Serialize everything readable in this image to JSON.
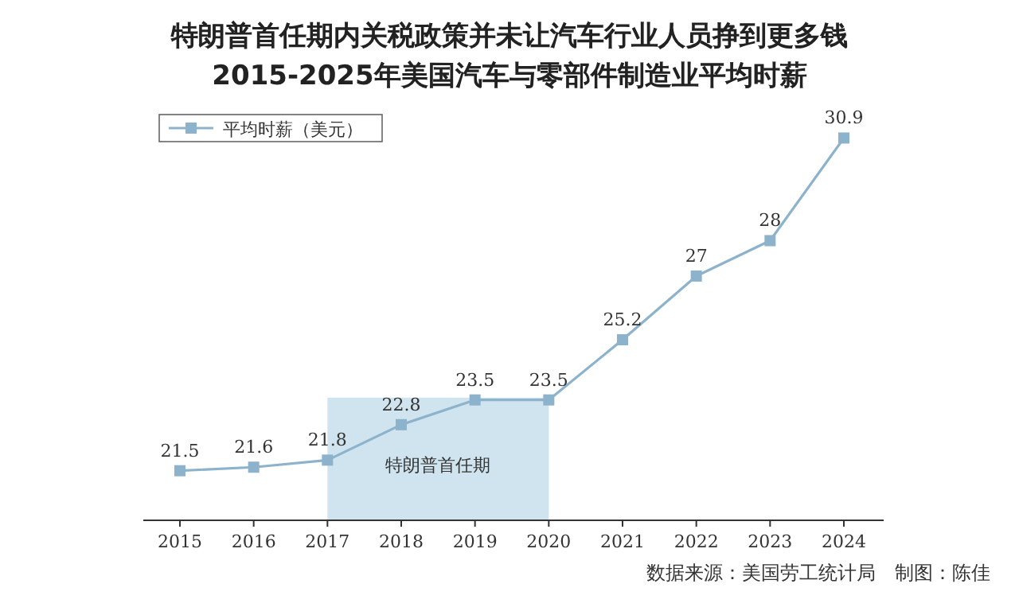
{
  "chart_data": {
    "type": "line",
    "title": "特朗普首任期内关税政策并未让汽车行业人员挣到更多钱\n2015-2025年美国汽车与零部件制造业平均时薪",
    "categories": [
      "2015",
      "2016",
      "2017",
      "2018",
      "2019",
      "2020",
      "2021",
      "2022",
      "2023",
      "2024"
    ],
    "series": [
      {
        "name": "平均时薪（美元）",
        "color": "#8db3cc",
        "values": [
          21.5,
          21.6,
          21.8,
          22.8,
          23.5,
          23.5,
          25.2,
          27,
          28,
          30.9
        ]
      }
    ],
    "bands": [
      {
        "axis": "x",
        "from": "2017",
        "to": "2020",
        "label": "特朗普首任期",
        "color": "#cfe4ee"
      }
    ],
    "data_labels": true,
    "marker": "square",
    "legend": "top left",
    "annotations": [
      "数据来源：美国劳工统计局　制图：陈佳"
    ]
  }
}
